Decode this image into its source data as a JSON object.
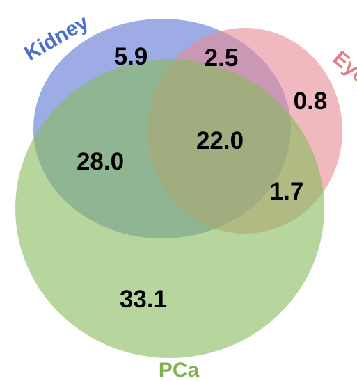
{
  "sets": {
    "kidney": {
      "label": "Kidney",
      "fill": "#5b74d4",
      "label_color": "#4a6fcf"
    },
    "eye": {
      "label": "Eye",
      "fill": "#e58b94",
      "label_color": "#e07f86"
    },
    "pca": {
      "label": "PCa",
      "fill": "#87bb5c",
      "label_color": "#7fb24d"
    }
  },
  "regions": {
    "kidney_only": "5.9",
    "kidney_eye": "2.5",
    "eye_only": "0.8",
    "kidney_eye_pca": "22.0",
    "kidney_pca": "28.0",
    "eye_pca": "1.7",
    "pca_only": "33.1"
  }
}
